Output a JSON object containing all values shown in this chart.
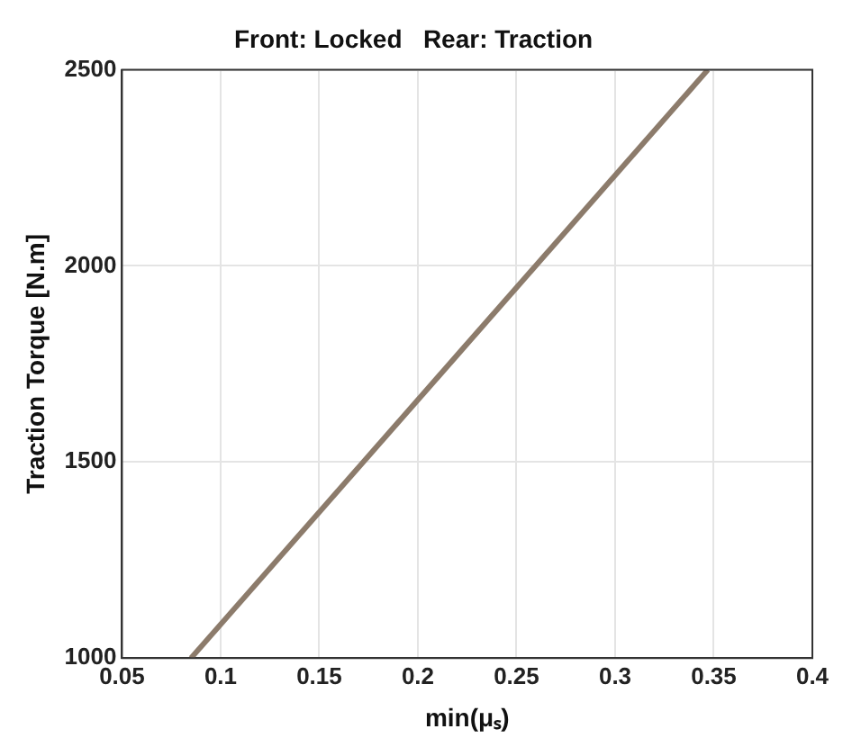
{
  "chart_data": {
    "type": "line",
    "title": "Front: Locked   Rear: Traction",
    "xlabel": "min(μₛ)",
    "ylabel": "Traction Torque [N.m]",
    "x": [
      0.085,
      0.347
    ],
    "series": [
      {
        "color": "#8c7b6b",
        "values": [
          1000,
          2500
        ]
      }
    ],
    "xlim": [
      0.05,
      0.4
    ],
    "xticks": [
      0.05,
      0.1,
      0.15,
      0.2,
      0.25,
      0.3,
      0.35,
      0.4
    ],
    "ylim": [
      1000,
      2500
    ],
    "yticks": [
      1000,
      1500,
      2000,
      2500
    ],
    "grid": true,
    "legend": false,
    "marker": "none",
    "line_style": "solid"
  }
}
